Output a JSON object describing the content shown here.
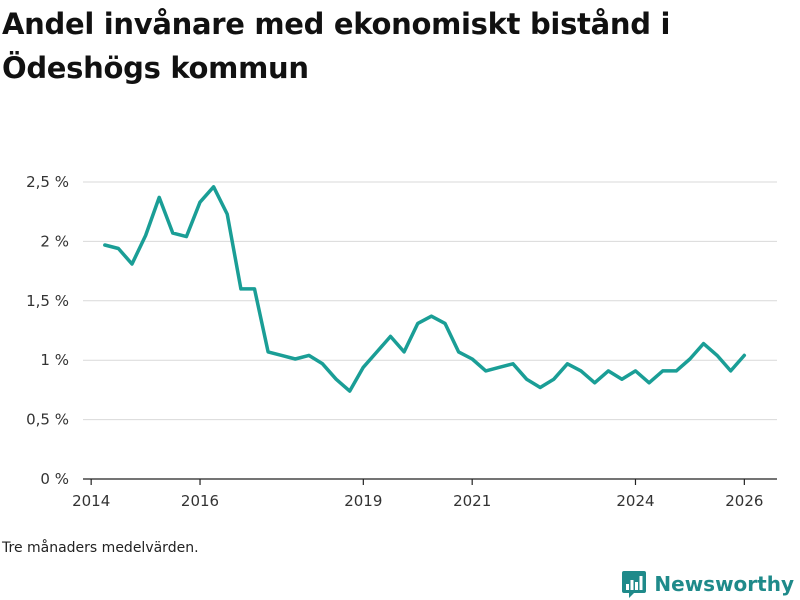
{
  "chart_data": {
    "type": "line",
    "title": "Andel invånare med ekonomiskt bistånd i Ödeshögs kommun",
    "xlabel": "",
    "ylabel": "",
    "ylim": [
      0,
      2.5
    ],
    "yticks": [
      0,
      0.5,
      1,
      1.5,
      2,
      2.5
    ],
    "ytick_labels": [
      "0 %",
      "0,5 %",
      "1 %",
      "1,5 %",
      "2 %",
      "2,5 %"
    ],
    "xlim": [
      2013.85,
      2026.6
    ],
    "xticks": [
      2014,
      2016,
      2019,
      2021,
      2024,
      2026
    ],
    "xtick_labels": [
      "2014",
      "2016",
      "2019",
      "2021",
      "2024",
      "2026"
    ],
    "grid": true,
    "series": [
      {
        "name": "Andel invånare med ekonomiskt bistånd",
        "color": "#1a9e96",
        "x": [
          2014.25,
          2014.5,
          2014.75,
          2015.0,
          2015.25,
          2015.5,
          2015.75,
          2016.0,
          2016.25,
          2016.5,
          2016.75,
          2017.0,
          2017.25,
          2017.5,
          2017.75,
          2018.0,
          2018.25,
          2018.5,
          2018.75,
          2019.0,
          2019.25,
          2019.5,
          2019.75,
          2020.0,
          2020.25,
          2020.5,
          2020.75,
          2021.0,
          2021.25,
          2021.5,
          2021.75,
          2022.0,
          2022.25,
          2022.5,
          2022.75,
          2023.0,
          2023.25,
          2023.5,
          2023.75,
          2024.0,
          2024.25,
          2024.5,
          2024.75,
          2025.0,
          2025.25,
          2025.5,
          2025.75,
          2026.0
        ],
        "values": [
          1.97,
          1.94,
          1.81,
          2.05,
          2.37,
          2.07,
          2.04,
          2.33,
          2.46,
          2.23,
          1.6,
          1.6,
          1.07,
          1.04,
          1.01,
          1.04,
          0.97,
          0.84,
          0.74,
          0.94,
          1.07,
          1.2,
          1.07,
          1.31,
          1.37,
          1.31,
          1.07,
          1.01,
          0.91,
          0.94,
          0.97,
          0.84,
          0.77,
          0.84,
          0.97,
          0.91,
          0.81,
          0.91,
          0.84,
          0.91,
          0.81,
          0.91,
          0.91,
          1.01,
          1.14,
          1.04,
          0.91,
          1.04
        ]
      }
    ]
  },
  "footnote": "Tre månaders medelvärden.",
  "brand": {
    "name": "Newsworthy",
    "icon": "newsworthy-logo-icon",
    "color": "#1f8a8a"
  }
}
